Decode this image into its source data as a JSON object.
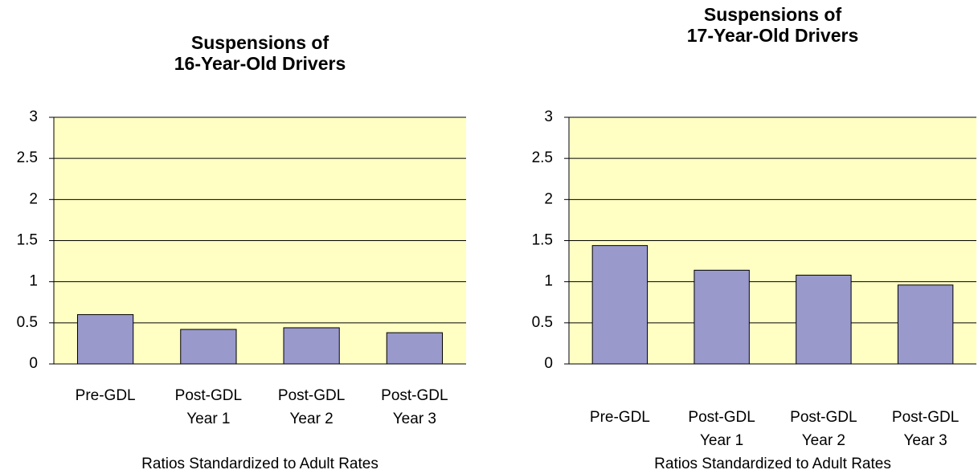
{
  "chart_data": [
    {
      "type": "bar",
      "title": [
        "Suspensions of",
        "16-Year-Old Drivers"
      ],
      "categories": [
        [
          "Pre-GDL"
        ],
        [
          "Post-GDL",
          "Year 1"
        ],
        [
          "Post-GDL",
          "Year 2"
        ],
        [
          "Post-GDL",
          "Year 3"
        ]
      ],
      "values": [
        0.6,
        0.42,
        0.44,
        0.38
      ],
      "color": "#9999cc",
      "xlabel": "Ratios Standardized to Adult Rates",
      "ylim": [
        0,
        3
      ],
      "yticks": [
        0,
        0.5,
        1,
        1.5,
        2,
        2.5,
        3
      ],
      "grid": true
    },
    {
      "type": "bar",
      "title": [
        "Suspensions of",
        "17-Year-Old Drivers"
      ],
      "categories": [
        [
          "Pre-GDL"
        ],
        [
          "Post-GDL",
          "Year 1"
        ],
        [
          "Post-GDL",
          "Year 2"
        ],
        [
          "Post-GDL",
          "Year 3"
        ]
      ],
      "values": [
        1.44,
        1.14,
        1.08,
        0.96
      ],
      "color": "#9999cc",
      "xlabel": "Ratios Standardized to Adult Rates",
      "ylim": [
        0,
        3
      ],
      "yticks": [
        0,
        0.5,
        1,
        1.5,
        2,
        2.5,
        3
      ],
      "grid": true
    }
  ]
}
